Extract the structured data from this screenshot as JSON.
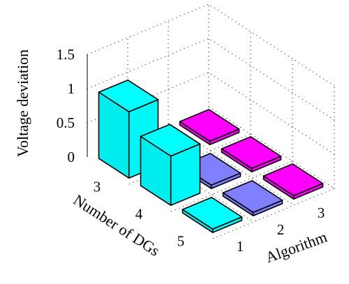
{
  "chart_data": {
    "type": "bar3d",
    "zlabel": "Voltage deviation",
    "xlabel": "Number of DGs",
    "ylabel": "Algorithm",
    "x_categories": [
      "3",
      "4",
      "5"
    ],
    "y_categories": [
      "1",
      "2",
      "3"
    ],
    "z_ticks": [
      "0",
      "0.5",
      "1",
      "1.5"
    ],
    "zlim": [
      0,
      1.5
    ],
    "grid": true,
    "colors": {
      "1": "#00ffff",
      "2": "#8080ff",
      "3": "#ff00ff"
    },
    "bars": [
      {
        "dgs": "3",
        "algorithm": "1",
        "value": 0.97
      },
      {
        "dgs": "3",
        "algorithm": "2",
        "value": 0.0
      },
      {
        "dgs": "3",
        "algorithm": "3",
        "value": 0.0
      },
      {
        "dgs": "4",
        "algorithm": "1",
        "value": 0.72
      },
      {
        "dgs": "4",
        "algorithm": "2",
        "value": 0.0
      },
      {
        "dgs": "4",
        "algorithm": "3",
        "value": 0.0
      },
      {
        "dgs": "5",
        "algorithm": "1",
        "value": 0.0
      },
      {
        "dgs": "5",
        "algorithm": "2",
        "value": 0.0
      },
      {
        "dgs": "5",
        "algorithm": "3",
        "value": 0.0
      }
    ]
  }
}
